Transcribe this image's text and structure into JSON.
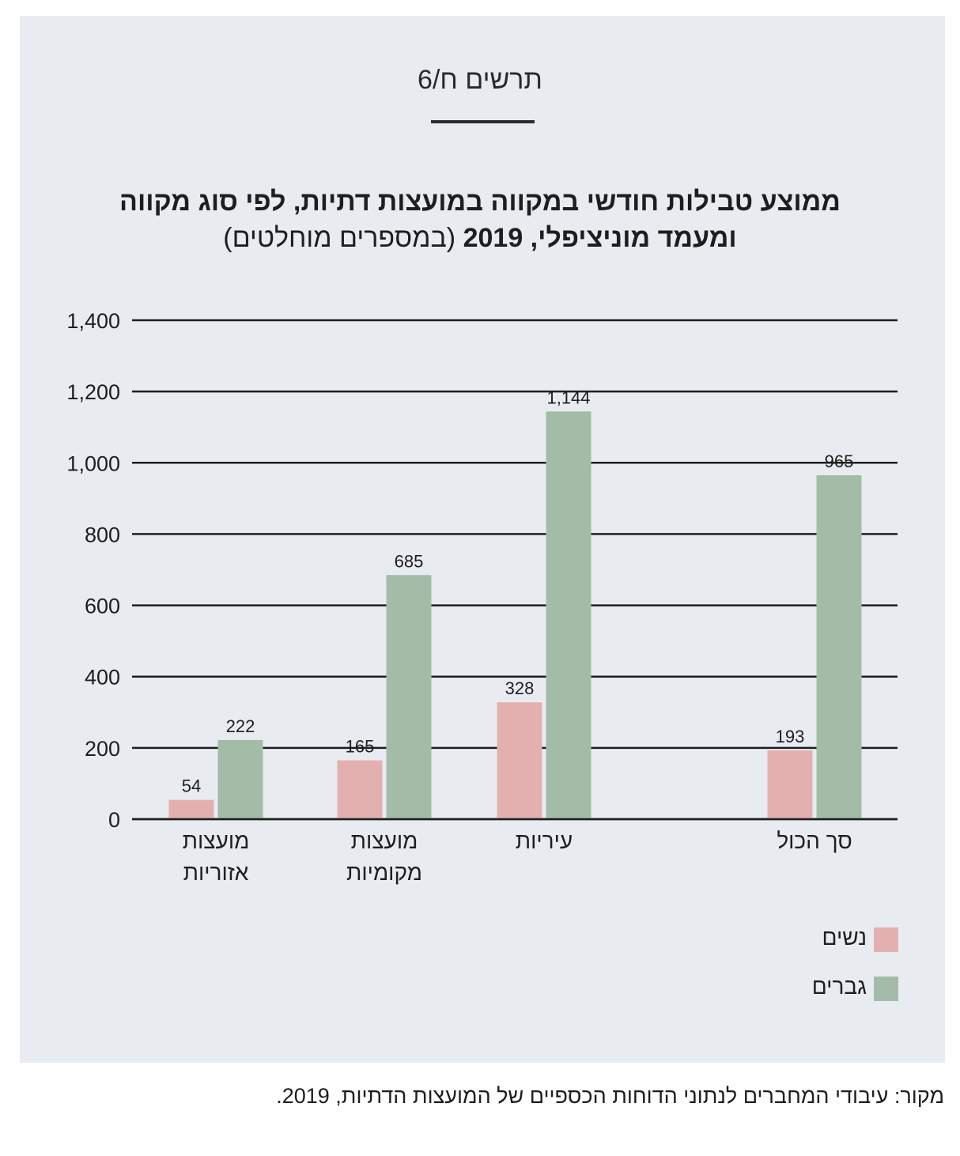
{
  "figure_label": "תרשים ח/6",
  "title": {
    "line1": "ממוצע טבילות חודשי במקווה במועצות דתיות, לפי סוג מקווה",
    "line2_bold": "ומעמד מוניציפלי, 2019",
    "line2_normal": "(במספרים מוחלטים)"
  },
  "source": "מקור: עיבודי המחברים לנתוני הדוחות הכספיים של המועצות הדתיות, 2019.",
  "colors": {
    "women": "#e4b0af",
    "men": "#a3bca8",
    "panel": "#e8ecf1",
    "grid": "#1e1e1e"
  },
  "chart_data": {
    "type": "bar",
    "categories": [
      [
        "מועצות",
        "אזוריות"
      ],
      [
        "מועצות",
        "מקומיות"
      ],
      [
        "עיריות"
      ],
      [
        "סך הכול"
      ]
    ],
    "series": [
      {
        "name": "נשים",
        "values": [
          54,
          165,
          328,
          193
        ],
        "labels": [
          "54",
          "165",
          "328",
          "193"
        ]
      },
      {
        "name": "גברים",
        "values": [
          222,
          685,
          1144,
          965
        ],
        "labels": [
          "222",
          "685",
          "1,144",
          "965"
        ]
      }
    ],
    "ylim": [
      0,
      1400
    ],
    "yticks": [
      0,
      200,
      400,
      600,
      800,
      1000,
      1200,
      1400
    ],
    "ytick_labels": [
      "0",
      "200",
      "400",
      "600",
      "800",
      "1,000",
      "1,200",
      "1,400"
    ],
    "grid": true,
    "legend_position": "bottom-right"
  }
}
